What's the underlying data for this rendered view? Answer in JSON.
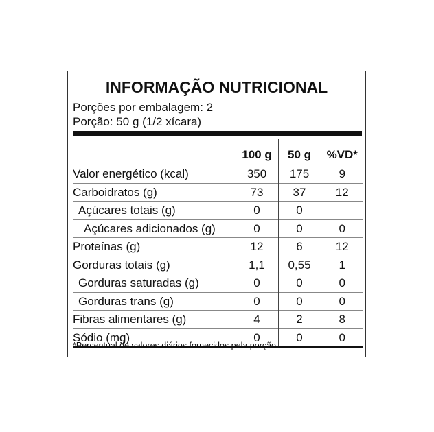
{
  "title": "INFORMAÇÃO NUTRICIONAL",
  "servings_per_package": "Porções por embalagem: 2",
  "serving_size": "Porção: 50 g (1/2 xícara)",
  "columns": [
    "",
    "100 g",
    "50 g",
    "%VD*"
  ],
  "rows": [
    {
      "label": "Valor energético (kcal)",
      "indent": 0,
      "v100": "350",
      "v50": "175",
      "vd": "9"
    },
    {
      "label": "Carboidratos (g)",
      "indent": 0,
      "v100": "73",
      "v50": "37",
      "vd": "12"
    },
    {
      "label": "Açúcares totais (g)",
      "indent": 1,
      "v100": "0",
      "v50": "0",
      "vd": ""
    },
    {
      "label": "Açúcares adicionados (g)",
      "indent": 2,
      "v100": "0",
      "v50": "0",
      "vd": "0"
    },
    {
      "label": "Proteínas (g)",
      "indent": 0,
      "v100": "12",
      "v50": "6",
      "vd": "12"
    },
    {
      "label": "Gorduras totais (g)",
      "indent": 0,
      "v100": "1,1",
      "v50": "0,55",
      "vd": "1"
    },
    {
      "label": "Gorduras saturadas (g)",
      "indent": 1,
      "v100": "0",
      "v50": "0",
      "vd": "0"
    },
    {
      "label": "Gorduras trans (g)",
      "indent": 1,
      "v100": "0",
      "v50": "0",
      "vd": "0"
    },
    {
      "label": "Fibras alimentares (g)",
      "indent": 0,
      "v100": "4",
      "v50": "2",
      "vd": "8"
    },
    {
      "label": "Sódio (mg)",
      "indent": 0,
      "v100": "0",
      "v50": "0",
      "vd": "0"
    }
  ],
  "footnote": "*Percentual de valores diários fornecidos pela porção."
}
